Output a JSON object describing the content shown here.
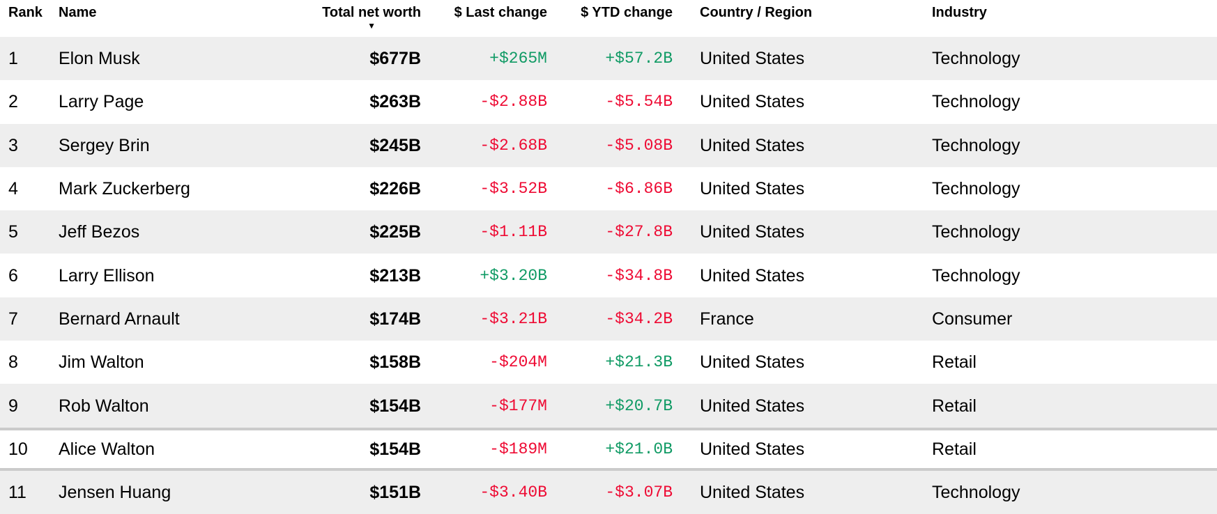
{
  "colors": {
    "positive": "#0f9a64",
    "negative": "#ee0a33",
    "row_alt_background": "#eeeeee",
    "row_highlight_border": "#cbcbcb",
    "text": "#000000"
  },
  "table": {
    "sort_icon": "▼",
    "sorted_column": "net_worth",
    "columns": [
      {
        "key": "rank",
        "label": "Rank",
        "align": "left"
      },
      {
        "key": "name",
        "label": "Name",
        "align": "left"
      },
      {
        "key": "net_worth",
        "label": "Total net worth",
        "align": "right",
        "sorted": true
      },
      {
        "key": "last_change",
        "label": "$ Last change",
        "align": "right"
      },
      {
        "key": "ytd_change",
        "label": "$ YTD change",
        "align": "right"
      },
      {
        "key": "country",
        "label": "Country / Region",
        "align": "left"
      },
      {
        "key": "industry",
        "label": "Industry",
        "align": "left"
      }
    ],
    "rows": [
      {
        "rank": "1",
        "name": "Elon Musk",
        "net_worth": "$677B",
        "last_change": "+$265M",
        "last_change_dir": "up",
        "ytd_change": "+$57.2B",
        "ytd_change_dir": "up",
        "country": "United States",
        "industry": "Technology"
      },
      {
        "rank": "2",
        "name": "Larry Page",
        "net_worth": "$263B",
        "last_change": "-$2.88B",
        "last_change_dir": "down",
        "ytd_change": "-$5.54B",
        "ytd_change_dir": "down",
        "country": "United States",
        "industry": "Technology"
      },
      {
        "rank": "3",
        "name": "Sergey Brin",
        "net_worth": "$245B",
        "last_change": "-$2.68B",
        "last_change_dir": "down",
        "ytd_change": "-$5.08B",
        "ytd_change_dir": "down",
        "country": "United States",
        "industry": "Technology"
      },
      {
        "rank": "4",
        "name": "Mark Zuckerberg",
        "net_worth": "$226B",
        "last_change": "-$3.52B",
        "last_change_dir": "down",
        "ytd_change": "-$6.86B",
        "ytd_change_dir": "down",
        "country": "United States",
        "industry": "Technology"
      },
      {
        "rank": "5",
        "name": "Jeff Bezos",
        "net_worth": "$225B",
        "last_change": "-$1.11B",
        "last_change_dir": "down",
        "ytd_change": "-$27.8B",
        "ytd_change_dir": "down",
        "country": "United States",
        "industry": "Technology"
      },
      {
        "rank": "6",
        "name": "Larry Ellison",
        "net_worth": "$213B",
        "last_change": "+$3.20B",
        "last_change_dir": "up",
        "ytd_change": "-$34.8B",
        "ytd_change_dir": "down",
        "country": "United States",
        "industry": "Technology"
      },
      {
        "rank": "7",
        "name": "Bernard Arnault",
        "net_worth": "$174B",
        "last_change": "-$3.21B",
        "last_change_dir": "down",
        "ytd_change": "-$34.2B",
        "ytd_change_dir": "down",
        "country": "France",
        "industry": "Consumer"
      },
      {
        "rank": "8",
        "name": "Jim Walton",
        "net_worth": "$158B",
        "last_change": "-$204M",
        "last_change_dir": "down",
        "ytd_change": "+$21.3B",
        "ytd_change_dir": "up",
        "country": "United States",
        "industry": "Retail"
      },
      {
        "rank": "9",
        "name": "Rob Walton",
        "net_worth": "$154B",
        "last_change": "-$177M",
        "last_change_dir": "down",
        "ytd_change": "+$20.7B",
        "ytd_change_dir": "up",
        "country": "United States",
        "industry": "Retail"
      },
      {
        "rank": "10",
        "name": "Alice Walton",
        "net_worth": "$154B",
        "last_change": "-$189M",
        "last_change_dir": "down",
        "ytd_change": "+$21.0B",
        "ytd_change_dir": "up",
        "country": "United States",
        "industry": "Retail",
        "highlighted": true
      },
      {
        "rank": "11",
        "name": "Jensen Huang",
        "net_worth": "$151B",
        "last_change": "-$3.40B",
        "last_change_dir": "down",
        "ytd_change": "-$3.07B",
        "ytd_change_dir": "down",
        "country": "United States",
        "industry": "Technology"
      }
    ]
  }
}
